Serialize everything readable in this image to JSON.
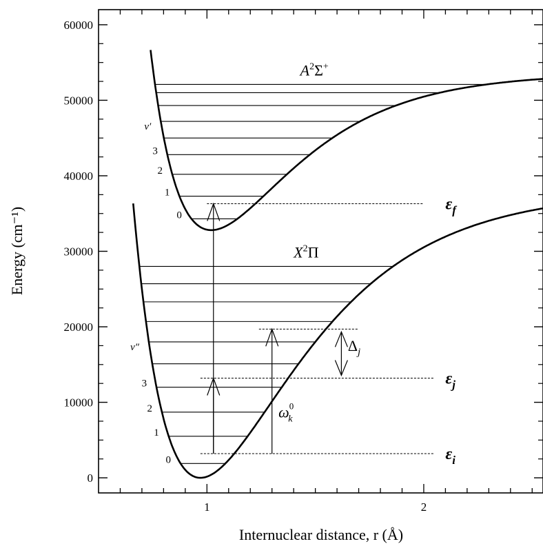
{
  "chart_data": {
    "type": "line",
    "xlabel": "Internuclear distance, r (Å)",
    "ylabel": "Energy (cm⁻¹)",
    "xlim": [
      0.5,
      2.55
    ],
    "ylim": [
      -2000,
      62000
    ],
    "xticks": [
      1,
      2
    ],
    "yticks": [
      0,
      10000,
      20000,
      30000,
      40000,
      50000,
      60000
    ],
    "grid": false,
    "curves": [
      {
        "label": "X²Π",
        "type": "morse",
        "te": 0,
        "de": 38000,
        "a": 2.2,
        "re": 0.97,
        "r_min": 0.66,
        "levels": [
          1900,
          5500,
          8700,
          12000,
          15100,
          18000,
          20700,
          23300,
          25700,
          28000
        ],
        "vlabels": [
          "0",
          "1",
          "2",
          "3",
          "v″"
        ]
      },
      {
        "label": "A²Σ⁺",
        "type": "morse",
        "te": 32800,
        "de": 20800,
        "a": 2.6,
        "re": 1.02,
        "r_min": 0.74,
        "levels": [
          34300,
          37300,
          40200,
          42800,
          45000,
          47200,
          49300,
          51000,
          52100
        ],
        "vlabels": [
          "0",
          "1",
          "2",
          "3",
          "v′"
        ]
      }
    ],
    "reference_energies": [
      {
        "label": "εi",
        "energy": 3200,
        "x_from": 0.97,
        "x_to": 2.05
      },
      {
        "label": "εj",
        "energy": 13200,
        "x_from": 0.97,
        "x_to": 2.05
      },
      {
        "label": "εf",
        "energy": 36300,
        "x_from": 1.0,
        "x_to": 2.0
      },
      {
        "label": "",
        "energy": 19700,
        "x_from": 1.24,
        "x_to": 1.7
      }
    ],
    "transitions": [
      {
        "x": 1.03,
        "from": 3200,
        "to": 36300
      },
      {
        "x": 1.03,
        "from": 3200,
        "to": 13200
      },
      {
        "x": 1.3,
        "from": 3200,
        "to": 19700
      }
    ],
    "annotations": {
      "omega": {
        "base": "ω",
        "sup": "0",
        "sub": "k"
      },
      "delta": {
        "base": "Δ",
        "sub": "j"
      },
      "x_state": {
        "base": "X",
        "sup": "2",
        "tail": "Π"
      },
      "a_state": {
        "base": "A",
        "sup": "2",
        "tail": "Σ",
        "tail_sup": "+"
      },
      "eps_i": {
        "base": "ε",
        "sub": "i"
      },
      "eps_j": {
        "base": "ε",
        "sub": "j"
      },
      "eps_f": {
        "base": "ε",
        "sub": "f"
      }
    }
  }
}
